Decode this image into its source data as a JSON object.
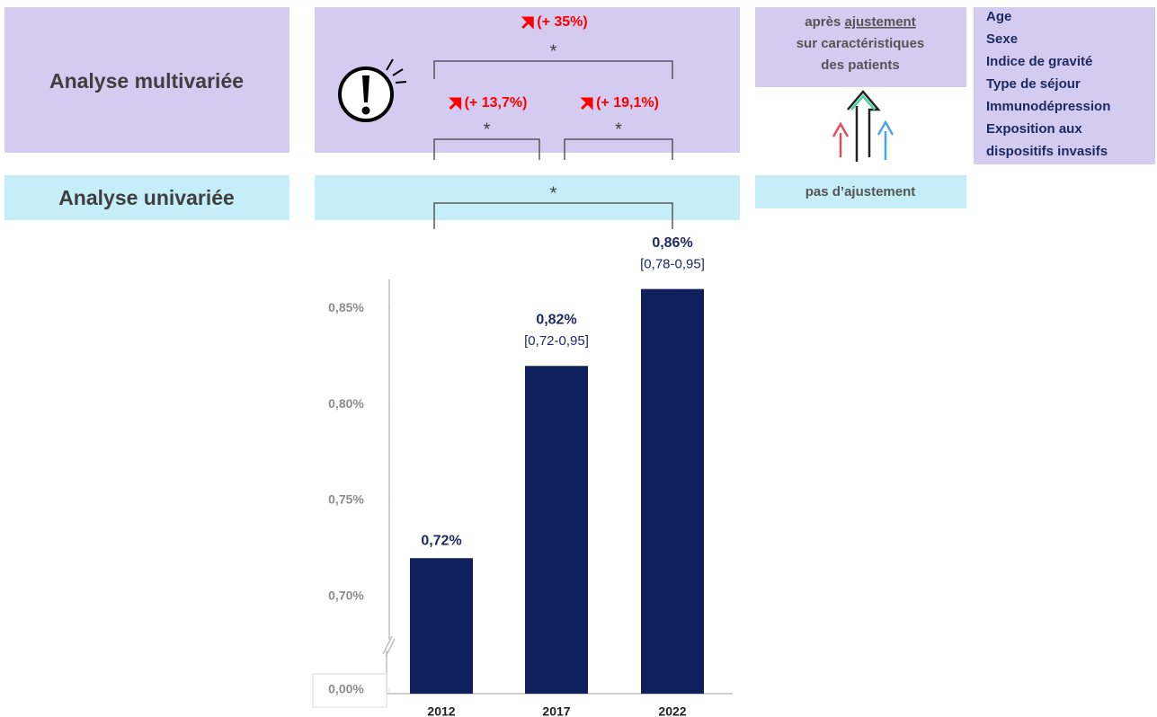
{
  "panel_labels": {
    "multivariate": "Analyse multivariée",
    "univariate": "Analyse univariée"
  },
  "comparisons": [
    {
      "label": "(+ 35%)",
      "star": "*"
    },
    {
      "label": "(+ 13,7%)",
      "star": "*"
    },
    {
      "label": "(+ 19,1%)",
      "star": "*"
    },
    {
      "star": "*"
    }
  ],
  "adjustment": {
    "before": "après",
    "underlined": "ajustement",
    "lines": [
      "sur caractéristiques",
      "des patients"
    ]
  },
  "no_adjustment": "pas d’ajustement",
  "covariates": [
    "Age",
    "Sexe",
    "Indice de gravité",
    "Type de séjour",
    "Immunodépression",
    "Exposition aux",
    "dispositifs invasifs"
  ],
  "chart_data": {
    "type": "bar",
    "categories": [
      "2012",
      "2017",
      "2022"
    ],
    "values": [
      0.72,
      0.82,
      0.86
    ],
    "value_labels": [
      "0,72%",
      "0,82%",
      "0,86%"
    ],
    "interval_labels": [
      null,
      "[0,72-0,95]",
      "[0,78-0,95]"
    ],
    "color": "#0f1f5c",
    "ylim": [
      0.675,
      0.865
    ],
    "yticks": [
      {
        "value": 0,
        "label": "0,00%"
      },
      {
        "value": 0.7,
        "label": "0,70%"
      },
      {
        "value": 0.75,
        "label": "0,75%"
      },
      {
        "value": 0.8,
        "label": "0,80%"
      },
      {
        "value": 0.85,
        "label": "0,85%"
      }
    ],
    "axis_break": true,
    "grid": false
  }
}
